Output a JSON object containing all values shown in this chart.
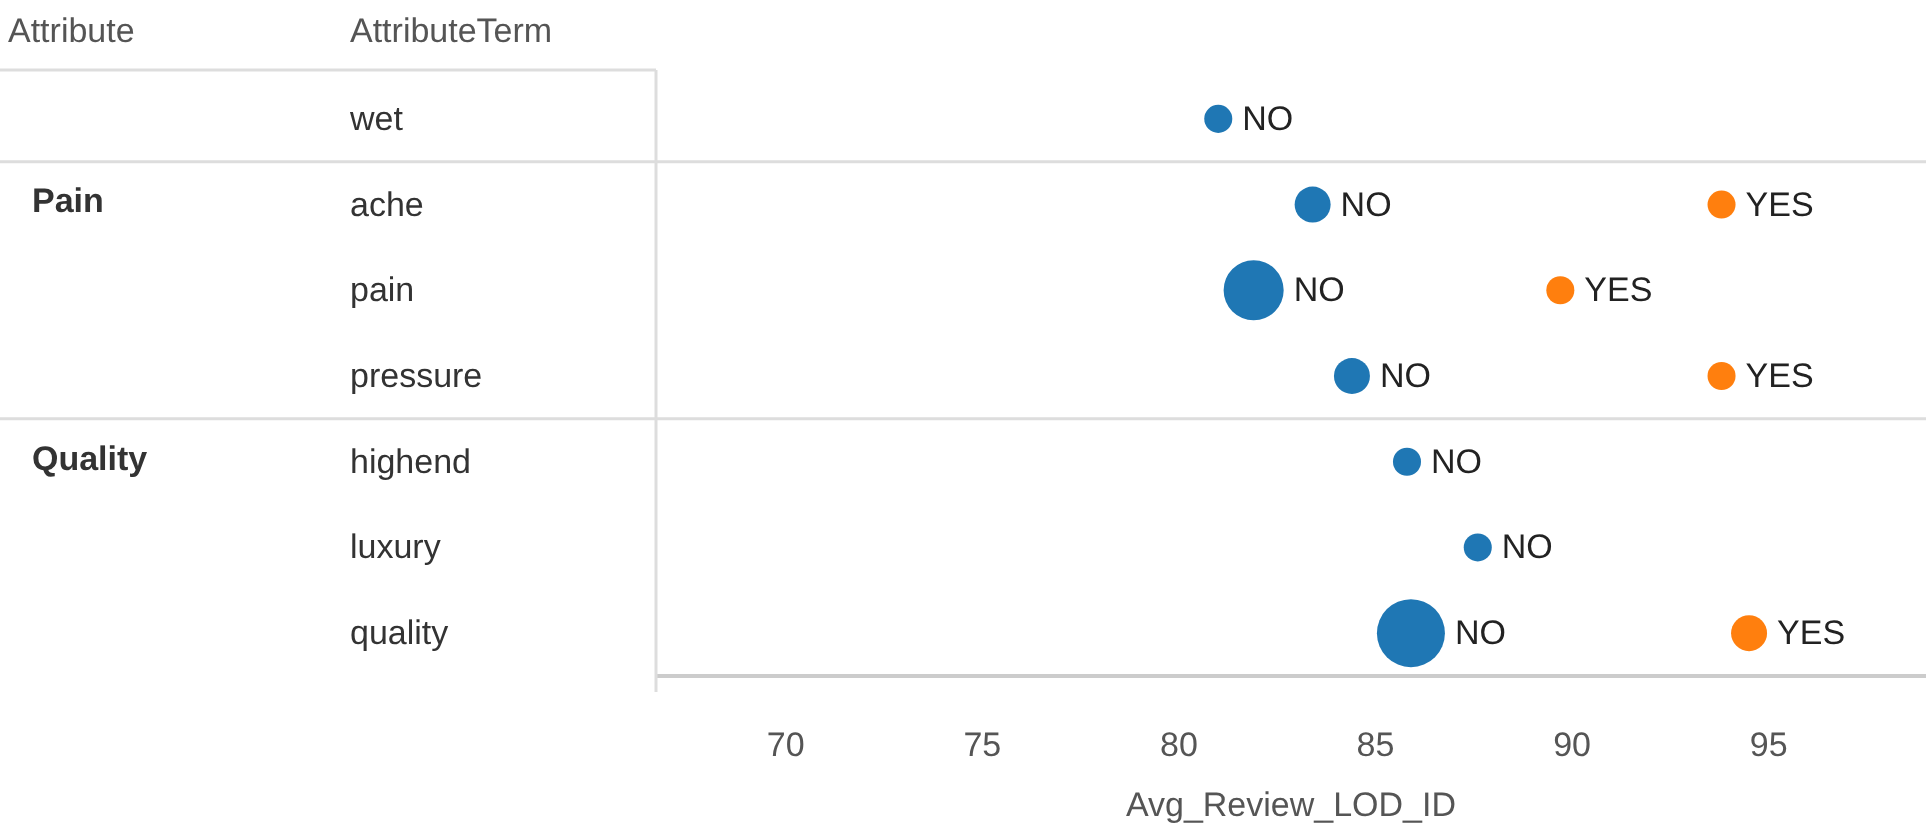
{
  "chart_data": {
    "type": "bubble",
    "orientation": "horizontal",
    "xlabel": "Avg_Review_LOD_ID",
    "ylabel": "AttributeTerm",
    "categories": [
      "wet",
      "ache",
      "pain",
      "pressure",
      "highend",
      "luxury",
      "quality"
    ],
    "series": [
      {
        "name": "NO",
        "color": "#1f77b4",
        "values": [
          81.0,
          83.4,
          81.9,
          84.4,
          85.8,
          87.6,
          85.9
        ],
        "sizes": [
          0.17,
          0.28,
          0.78,
          0.28,
          0.17,
          0.17,
          1
        ]
      },
      {
        "name": "YES",
        "color": "#ff7f0e",
        "values": [
          null,
          93.8,
          89.7,
          93.8,
          null,
          null,
          94.5
        ],
        "sizes": [
          null,
          0.17,
          0.17,
          0.17,
          null,
          null,
          0.28
        ]
      }
    ],
    "xlim": [
      66.7,
      99
    ],
    "xticks": [
      70,
      75,
      80,
      85,
      90,
      95
    ],
    "grid": false,
    "legend": false,
    "marker": "circle",
    "annotations": [
      "Attribute",
      "Pain",
      "Quality"
    ]
  }
}
